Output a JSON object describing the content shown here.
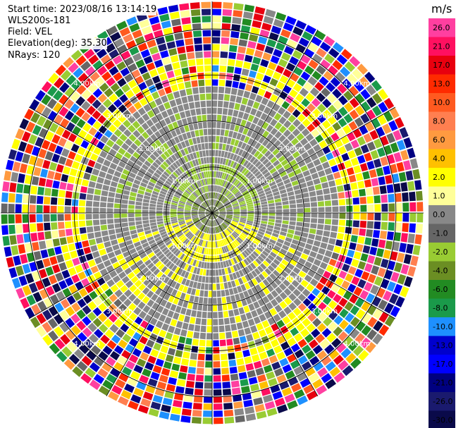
{
  "header": {
    "start_time": "Start time: 2023/08/16 13:14:19",
    "instrument": "WLS200s-181",
    "field": "Field: VEL",
    "elevation": "Elevation(deg): 35.30",
    "nrays": "NRays: 120"
  },
  "chart_data": {
    "type": "heatmap",
    "projection": "polar-ppi",
    "field": "VEL",
    "elevation_deg": 35.3,
    "n_rays": 120,
    "range_rings_km": [
      1.0,
      2.0,
      3.0,
      4.0
    ],
    "range_ring_labels": [
      "1.00km",
      "2.00km",
      "3.00km",
      "4.00km"
    ],
    "max_range_km": 4.6,
    "colorbar": {
      "unit": "m/s",
      "ticks": [
        "26.0",
        "21.0",
        "17.0",
        "13.0",
        "10.0",
        "8.0",
        "6.0",
        "4.0",
        "2.0",
        "1.0",
        "0.0",
        "-1.0",
        "-2.0",
        "-4.0",
        "-6.0",
        "-8.0",
        "-10.0",
        "-13.0",
        "-17.0",
        "-21.0",
        "-26.0",
        "-30.0"
      ],
      "colors": [
        "#ff3fa0",
        "#ff1060",
        "#e8000f",
        "#ff2a00",
        "#ff5a20",
        "#ff7f50",
        "#ff9a40",
        "#ffc000",
        "#ffff00",
        "#ffff99",
        "#888888",
        "#666666",
        "#99cc33",
        "#6b8e23",
        "#228b22",
        "#1a9a4a",
        "#1e90ff",
        "#0000cd",
        "#0000ff",
        "#000080",
        "#1a1a6e",
        "#0a0a4a"
      ]
    },
    "near_field": {
      "within_1km": "mostly 0.0 (gray), with yellow ~2.0 south and green ~-4.0 north",
      "1_to_3km": "gray 0.0 dominant, yellow-green ring partially",
      "beyond_3km": "noise, full colour range"
    }
  }
}
